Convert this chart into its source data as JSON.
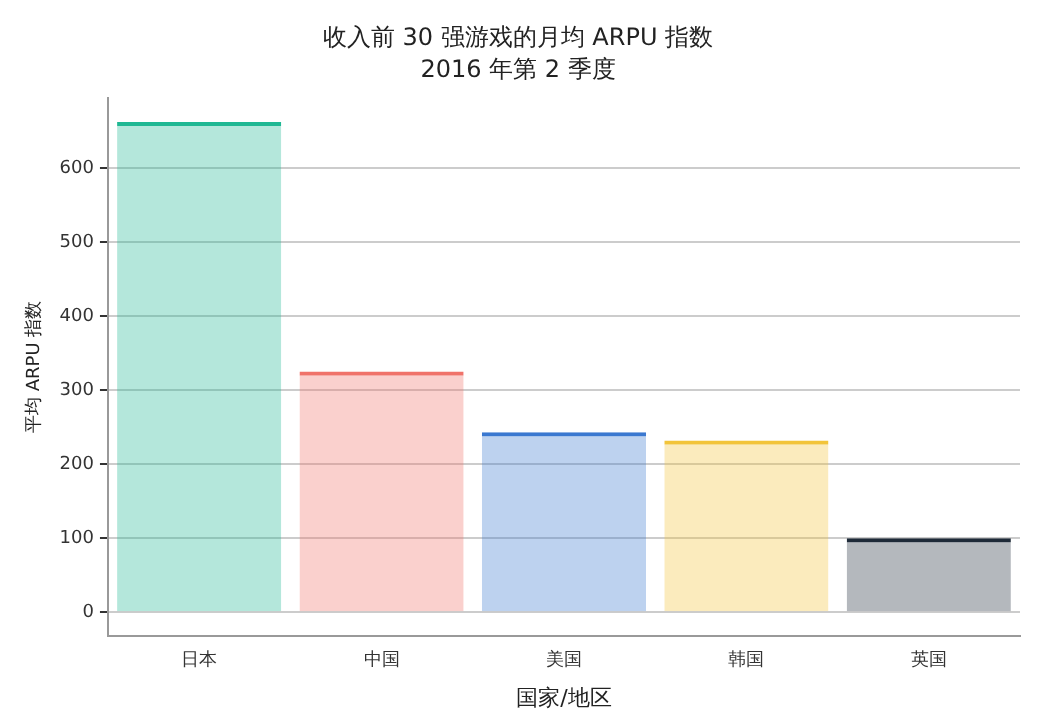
{
  "chart_data": {
    "type": "bar",
    "title": "收入前 30 强游戏的月均 ARPU 指数",
    "subtitle": "2016 年第 2 季度",
    "xlabel": "国家/地区",
    "ylabel": "平均 ARPU 指数",
    "categories": [
      "日本",
      "中国",
      "美国",
      "韩国",
      "英国"
    ],
    "values": [
      662,
      325,
      243,
      232,
      100
    ],
    "colors": [
      "#1fb893",
      "#f0736a",
      "#3a78d0",
      "#f2c43a",
      "#1e2a38"
    ],
    "ylim": [
      -32,
      695
    ],
    "yticks": [
      0,
      100,
      200,
      300,
      400,
      500,
      600
    ],
    "grid": "y",
    "legend": false
  }
}
